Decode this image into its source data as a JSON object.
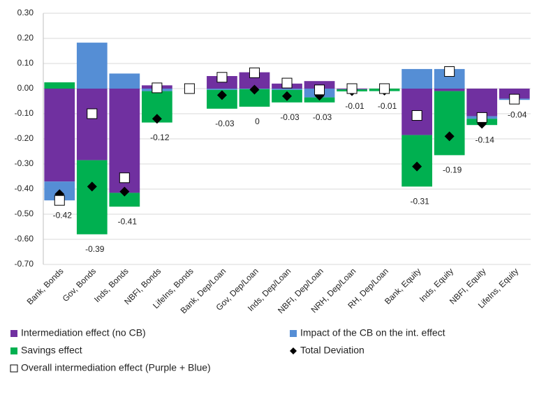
{
  "chart_data": {
    "type": "bar",
    "stacked": true,
    "grid": true,
    "categories": [
      "Bank, Bonds",
      "Gov, Bonds",
      "Inds, Bonds",
      "NBFI, Bonds",
      "LifeIns, Bonds",
      "Bank, Dep/Loan",
      "Gov, Dep/Loan",
      "Inds, Dep/Loan",
      "NBFI, Dep/Loan",
      "NRH, Dep/Loan",
      "RH, Dep/Loan",
      "Bank, Equity",
      "Inds, Equity",
      "NBFI, Equity",
      "LifeIns, Equity"
    ],
    "ylim": [
      -0.7,
      0.3
    ],
    "yticks": [
      {
        "value": 0.3,
        "label": "0.30"
      },
      {
        "value": 0.2,
        "label": "0.20"
      },
      {
        "value": 0.1,
        "label": "0.10"
      },
      {
        "value": 0,
        "label": "0.00"
      },
      {
        "value": -0.1,
        "label": "-0.10"
      },
      {
        "value": -0.2,
        "label": "-0.20"
      },
      {
        "value": -0.3,
        "label": "-0.30"
      },
      {
        "value": -0.4,
        "label": "-0.40"
      },
      {
        "value": -0.5,
        "label": "-0.50"
      },
      {
        "value": -0.6,
        "label": "-0.60"
      },
      {
        "value": -0.7,
        "label": "-0.70"
      }
    ],
    "series": [
      {
        "name": "Intermediation effect (no CB)",
        "type": "bar",
        "color": "#7030a0",
        "values": [
          -0.37,
          -0.285,
          -0.415,
          0.013,
          0,
          0.05,
          0.065,
          0.02,
          0.03,
          -0.003,
          0,
          -0.185,
          -0.01,
          -0.11,
          -0.04
        ]
      },
      {
        "name": "Impact of the CB on the int. effect",
        "type": "bar",
        "color": "#558ed5",
        "values": [
          -0.075,
          0.183,
          0.06,
          -0.01,
          0,
          -0.005,
          -0.002,
          -0.005,
          -0.035,
          0,
          0,
          0.078,
          0.078,
          -0.01,
          -0.005
        ]
      },
      {
        "name": "Savings effect",
        "type": "bar",
        "color": "#00b050",
        "values": [
          0.025,
          -0.295,
          -0.055,
          -0.125,
          0,
          -0.075,
          -0.07,
          -0.05,
          -0.02,
          -0.008,
          -0.01,
          -0.205,
          -0.255,
          -0.025,
          0
        ]
      },
      {
        "name": "Total Deviation",
        "type": "scatter",
        "marker": "diamond",
        "color": "#000000",
        "values": [
          -0.42,
          -0.39,
          -0.41,
          -0.12,
          0,
          -0.026,
          -0.004,
          -0.03,
          -0.028,
          -0.01,
          -0.008,
          -0.31,
          -0.19,
          -0.14,
          -0.04
        ],
        "value_labels": [
          "-0.42",
          "-0.39",
          "-0.41",
          "-0.12",
          null,
          "-0.03",
          "0",
          "-0.03",
          "-0.03",
          "-0.01",
          "-0.01",
          "-0.31",
          "-0.19",
          "-0.14",
          "-0.04"
        ]
      },
      {
        "name": "Overall intermediation effect (Purple + Blue)",
        "type": "scatter",
        "marker": "square",
        "color": "#ffffff",
        "values": [
          -0.445,
          -0.1,
          -0.355,
          0.003,
          0,
          0.045,
          0.063,
          0.022,
          -0.005,
          0,
          0,
          -0.107,
          0.068,
          -0.115,
          -0.042
        ]
      }
    ]
  }
}
